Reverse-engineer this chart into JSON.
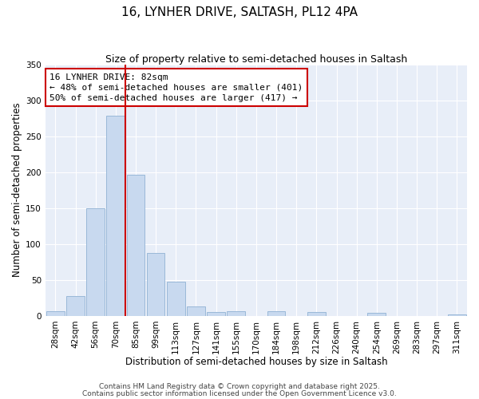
{
  "title": "16, LYNHER DRIVE, SALTASH, PL12 4PA",
  "subtitle": "Size of property relative to semi-detached houses in Saltash",
  "xlabel": "Distribution of semi-detached houses by size in Saltash",
  "ylabel": "Number of semi-detached properties",
  "bar_labels": [
    "28sqm",
    "42sqm",
    "56sqm",
    "70sqm",
    "85sqm",
    "99sqm",
    "113sqm",
    "127sqm",
    "141sqm",
    "155sqm",
    "170sqm",
    "184sqm",
    "198sqm",
    "212sqm",
    "226sqm",
    "240sqm",
    "254sqm",
    "269sqm",
    "283sqm",
    "297sqm",
    "311sqm"
  ],
  "bar_values": [
    6,
    28,
    150,
    278,
    196,
    88,
    48,
    13,
    5,
    7,
    0,
    7,
    0,
    5,
    0,
    0,
    4,
    0,
    0,
    0,
    2
  ],
  "bar_color": "#c8d9ef",
  "bar_edge_color": "#9ab8d8",
  "vline_color": "#cc0000",
  "annotation_line1": "16 LYNHER DRIVE: 82sqm",
  "annotation_line2": "← 48% of semi-detached houses are smaller (401)",
  "annotation_line3": "50% of semi-detached houses are larger (417) →",
  "annotation_box_color": "#ffffff",
  "annotation_box_edge": "#cc0000",
  "ylim": [
    0,
    350
  ],
  "yticks": [
    0,
    50,
    100,
    150,
    200,
    250,
    300,
    350
  ],
  "plot_bg_color": "#e8eef8",
  "fig_bg_color": "#ffffff",
  "footer_line1": "Contains HM Land Registry data © Crown copyright and database right 2025.",
  "footer_line2": "Contains public sector information licensed under the Open Government Licence v3.0.",
  "title_fontsize": 11,
  "subtitle_fontsize": 9,
  "axis_label_fontsize": 8.5,
  "tick_fontsize": 7.5,
  "annotation_fontsize": 8,
  "footer_fontsize": 6.5
}
